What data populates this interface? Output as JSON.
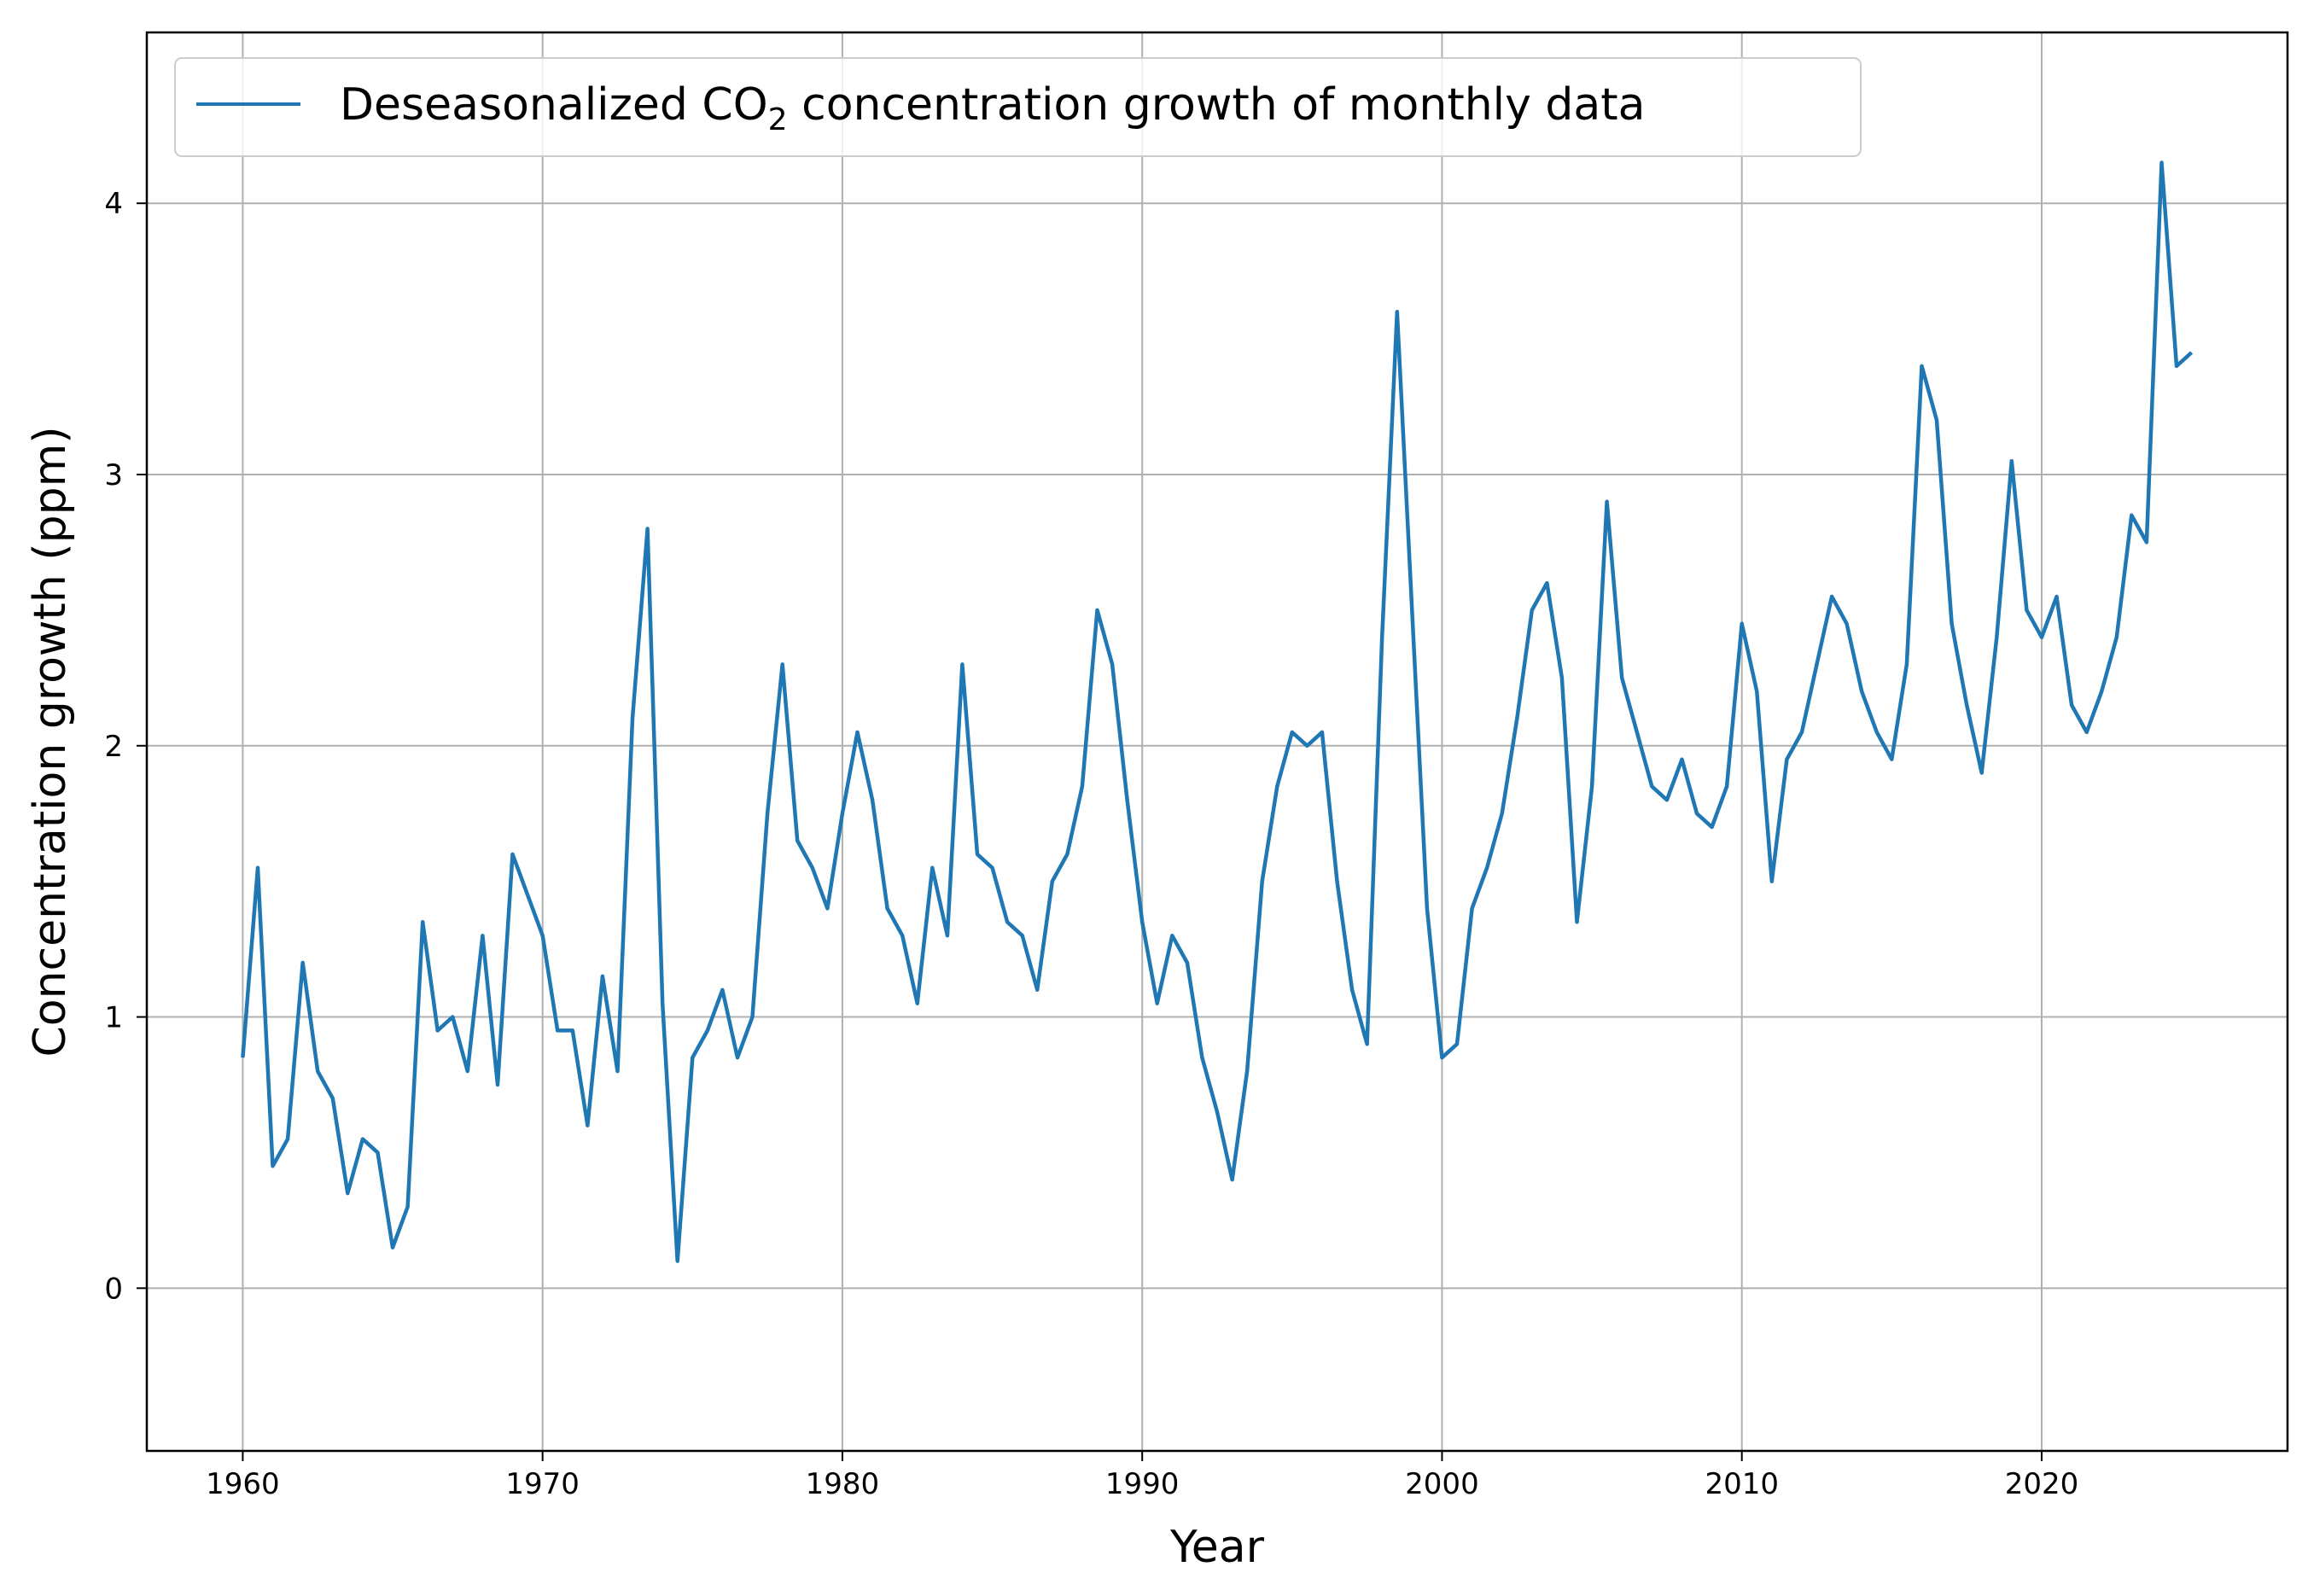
{
  "chart_data": {
    "type": "line",
    "title": "",
    "xlabel": "Year",
    "ylabel": "Concentration growth (ppm)",
    "xlim": [
      1956.8,
      2028.2
    ],
    "ylim": [
      -0.6,
      4.63
    ],
    "x_ticks": [
      1960,
      1970,
      1980,
      1990,
      2000,
      2010,
      2020
    ],
    "y_ticks": [
      0,
      1,
      2,
      3,
      4
    ],
    "grid": true,
    "legend_placement": "top-left",
    "legend": {
      "prefix": "Deseasonalized CO",
      "subscript": "2",
      "suffix": " concentration growth of monthly data"
    },
    "series": [
      {
        "name": "Deseasonalized CO2 concentration growth of monthly data",
        "color": "#1f77b4",
        "x": [
          1960.0,
          1960.5,
          1961.0,
          1961.5,
          1962.0,
          1962.5,
          1963.0,
          1963.5,
          1964.0,
          1964.5,
          1965.0,
          1965.5,
          1966.0,
          1966.5,
          1967.0,
          1967.5,
          1968.0,
          1968.5,
          1969.0,
          1969.5,
          1970.0,
          1970.5,
          1971.0,
          1971.5,
          1972.0,
          1972.5,
          1973.0,
          1973.5,
          1974.0,
          1974.5,
          1975.0,
          1975.5,
          1976.0,
          1976.5,
          1977.0,
          1977.5,
          1978.0,
          1978.5,
          1979.0,
          1979.5,
          1980.0,
          1980.5,
          1981.0,
          1981.5,
          1982.0,
          1982.5,
          1983.0,
          1983.5,
          1984.0,
          1984.5,
          1985.0,
          1985.5,
          1986.0,
          1986.5,
          1987.0,
          1987.5,
          1988.0,
          1988.5,
          1989.0,
          1989.5,
          1990.0,
          1990.5,
          1991.0,
          1991.5,
          1992.0,
          1992.5,
          1993.0,
          1993.5,
          1994.0,
          1994.5,
          1995.0,
          1995.5,
          1996.0,
          1996.5,
          1997.0,
          1997.5,
          1998.0,
          1998.5,
          1999.0,
          1999.5,
          2000.0,
          2000.5,
          2001.0,
          2001.5,
          2002.0,
          2002.5,
          2003.0,
          2003.5,
          2004.0,
          2004.5,
          2005.0,
          2005.5,
          2006.0,
          2006.5,
          2007.0,
          2007.5,
          2008.0,
          2008.5,
          2009.0,
          2009.5,
          2010.0,
          2010.5,
          2011.0,
          2011.5,
          2012.0,
          2012.5,
          2013.0,
          2013.5,
          2014.0,
          2014.5,
          2015.0,
          2015.5,
          2016.0,
          2016.5,
          2017.0,
          2017.5,
          2018.0,
          2018.5,
          2019.0,
          2019.5,
          2020.0,
          2020.5,
          2021.0,
          2021.5,
          2022.0,
          2022.5,
          2023.0,
          2023.5,
          2024.0,
          2024.5,
          2025.0
        ],
        "y": [
          0.85,
          1.55,
          0.45,
          0.55,
          1.2,
          0.8,
          0.7,
          0.35,
          0.55,
          0.5,
          0.15,
          0.3,
          1.35,
          0.95,
          1.0,
          0.8,
          1.3,
          0.75,
          1.6,
          1.45,
          1.3,
          0.95,
          0.95,
          0.6,
          1.15,
          0.8,
          2.1,
          2.8,
          1.05,
          0.1,
          0.85,
          0.95,
          1.1,
          0.85,
          1.0,
          1.75,
          2.3,
          1.65,
          1.55,
          1.4,
          1.75,
          2.05,
          1.8,
          1.4,
          1.3,
          1.05,
          1.55,
          1.3,
          2.3,
          1.6,
          1.55,
          1.35,
          1.3,
          1.1,
          1.5,
          1.6,
          1.85,
          2.5,
          2.3,
          1.8,
          1.35,
          1.05,
          1.3,
          1.2,
          0.85,
          0.65,
          0.4,
          0.8,
          1.5,
          1.85,
          2.05,
          2.0,
          2.05,
          1.5,
          1.1,
          0.9,
          2.4,
          3.6,
          2.5,
          1.4,
          0.85,
          0.9,
          1.4,
          1.55,
          1.75,
          2.1,
          2.5,
          2.6,
          2.25,
          1.35,
          1.85,
          2.9,
          2.25,
          2.05,
          1.85,
          1.8,
          1.95,
          1.75,
          1.7,
          1.85,
          2.45,
          2.2,
          1.5,
          1.95,
          2.05,
          2.3,
          2.55,
          2.45,
          2.2,
          2.05,
          1.95,
          2.3,
          3.4,
          3.2,
          2.45,
          2.15,
          1.9,
          2.4,
          3.05,
          2.5,
          2.4,
          2.55,
          2.15,
          2.05,
          2.2,
          2.4,
          2.85,
          2.75,
          4.15,
          3.4,
          3.45
        ]
      }
    ]
  }
}
